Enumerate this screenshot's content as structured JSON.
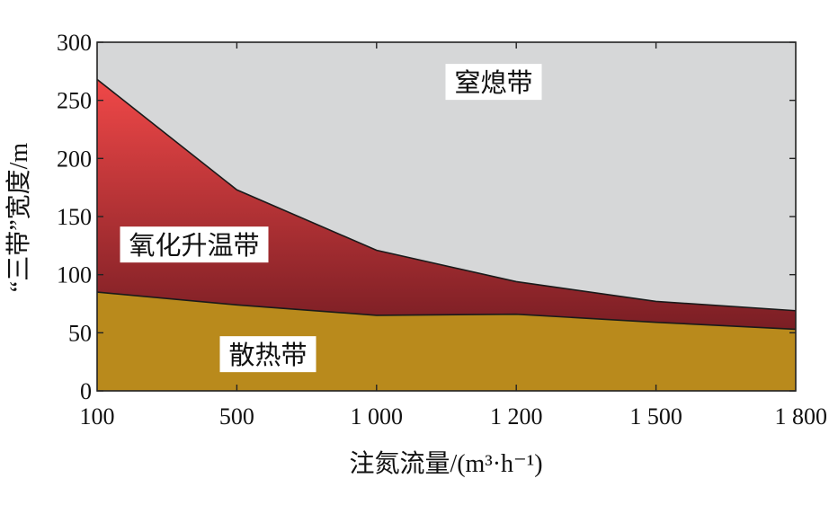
{
  "chart_data": {
    "type": "area",
    "categories": [
      "100",
      "500",
      "1 000",
      "1 200",
      "1 500",
      "1 800"
    ],
    "series": [
      {
        "name": "散热带",
        "values": [
          85,
          74,
          65,
          66,
          59,
          53
        ]
      },
      {
        "name": "氧化升温带",
        "values": [
          268,
          173,
          121,
          94,
          77,
          69
        ]
      },
      {
        "name": "窒熄带",
        "values": [
          300,
          300,
          300,
          300,
          300,
          300
        ]
      }
    ],
    "xlabel": "注氮流量/(m³·h⁻¹)",
    "ylabel": "“三带”宽度/m",
    "ylim": [
      0,
      300
    ],
    "yticks": [
      0,
      50,
      100,
      150,
      200,
      250,
      300
    ],
    "grid": false,
    "colors": {
      "dissipation_zone": "#b98a1c",
      "oxidation_top": "#f04848",
      "oxidation_bottom": "#7a1e24",
      "suffocation_zone": "#d6d7d8",
      "line": "#1a1a1a",
      "label_box": "#ffffff"
    }
  }
}
